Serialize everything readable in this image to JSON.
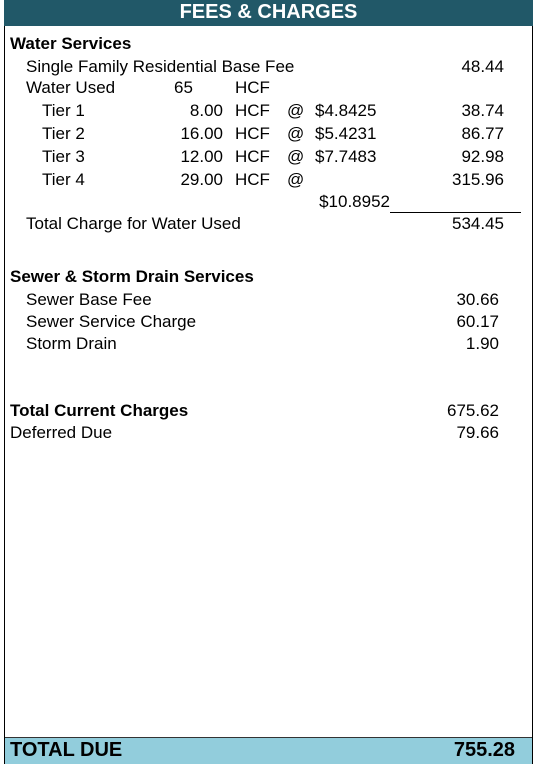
{
  "header": {
    "title": "FEES & CHARGES"
  },
  "water": {
    "title": "Water Services",
    "base_fee": {
      "label": "Single Family Residential Base Fee",
      "amount": "48.44"
    },
    "water_used": {
      "label": "Water Used",
      "quantity": "65",
      "unit": "HCF"
    },
    "tiers": [
      {
        "label": "Tier 1",
        "quantity": "8.00",
        "unit": "HCF",
        "at": "@",
        "rate": "$4.8425",
        "amount": "38.74"
      },
      {
        "label": "Tier 2",
        "quantity": "16.00",
        "unit": "HCF",
        "at": "@",
        "rate": "$5.4231",
        "amount": "86.77"
      },
      {
        "label": "Tier 3",
        "quantity": "12.00",
        "unit": "HCF",
        "at": "@",
        "rate": "$7.7483",
        "amount": "92.98"
      },
      {
        "label": "Tier 4",
        "quantity": "29.00",
        "unit": "HCF",
        "at": "@",
        "rate": "$10.8952",
        "amount": "315.96"
      }
    ],
    "total": {
      "label": "Total Charge for Water Used",
      "amount": "534.45"
    }
  },
  "sewer": {
    "title": "Sewer & Storm Drain Services",
    "items": [
      {
        "label": "Sewer Base Fee",
        "amount": "30.66"
      },
      {
        "label": "Sewer Service Charge",
        "amount": "60.17"
      },
      {
        "label": "Storm Drain",
        "amount": "1.90"
      }
    ]
  },
  "totals": {
    "current": {
      "label": "Total Current Charges",
      "amount": "675.62"
    },
    "deferred": {
      "label": "Deferred Due",
      "amount": "79.66"
    }
  },
  "footer": {
    "label": "TOTAL DUE",
    "amount": "755.28"
  }
}
